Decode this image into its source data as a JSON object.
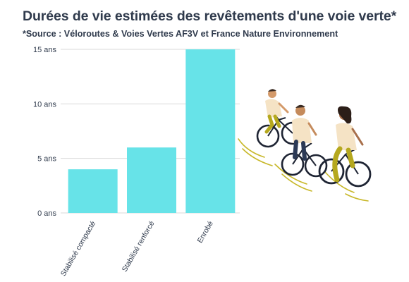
{
  "header": {
    "title": "Durées de vie estimées des revêtements d'une voie verte",
    "title_mark": "*",
    "subtitle_mark": "*",
    "subtitle": "Source : Véloroutes & Voies Vertes AF3V et France Nature Environnement"
  },
  "chart_data": {
    "type": "bar",
    "title": "Durées de vie estimées des revêtements d'une voie verte",
    "subtitle": "Source : Véloroutes & Voies Vertes AF3V et France Nature Environnement",
    "categories": [
      "Stabilisé compacté",
      "Stabilisé renforcé",
      "Enrobé"
    ],
    "values": [
      4,
      6,
      15
    ],
    "yticks": [
      "0 ans",
      "5 ans",
      "10 ans",
      "15 ans"
    ],
    "ytick_values": [
      0,
      5,
      10,
      15
    ],
    "ylim": [
      0,
      15
    ],
    "grid": true,
    "bar_color": "#67e3e8",
    "grid_color": "#d9d9d9",
    "text_color": "#2f3a4c"
  },
  "illustration": {
    "name": "cyclists-illustration"
  }
}
